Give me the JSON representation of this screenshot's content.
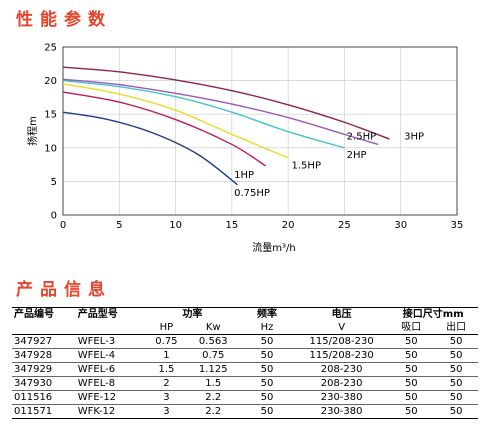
{
  "headings": {
    "performance": "性能参数",
    "product_info": "产品信息"
  },
  "chart_data": {
    "type": "line",
    "xlabel": "流量m³/h",
    "ylabel": "扬程m",
    "xlim": [
      0,
      35
    ],
    "ylim": [
      0,
      25
    ],
    "xticks": [
      0,
      5,
      10,
      15,
      20,
      25,
      30,
      35
    ],
    "yticks": [
      0,
      5,
      10,
      15,
      20,
      25
    ],
    "grid": true,
    "series": [
      {
        "name": "0.75HP",
        "color": "#1e3a8a",
        "points": [
          [
            0,
            15.3
          ],
          [
            4,
            14.2
          ],
          [
            8,
            12.2
          ],
          [
            12,
            9.0
          ],
          [
            15.5,
            4.5
          ]
        ]
      },
      {
        "name": "1HP",
        "color": "#c2185b",
        "points": [
          [
            0,
            18.3
          ],
          [
            5,
            16.8
          ],
          [
            10,
            14.2
          ],
          [
            15,
            10.5
          ],
          [
            18,
            7.3
          ]
        ]
      },
      {
        "name": "1.5HP",
        "color": "#eadb2b",
        "points": [
          [
            0,
            19.5
          ],
          [
            5,
            18.0
          ],
          [
            10,
            15.6
          ],
          [
            15,
            12.0
          ],
          [
            20,
            8.5
          ]
        ]
      },
      {
        "name": "2HP",
        "color": "#40c8c4",
        "points": [
          [
            0,
            20.0
          ],
          [
            5,
            19.1
          ],
          [
            10,
            17.6
          ],
          [
            15,
            15.3
          ],
          [
            20,
            12.4
          ],
          [
            25,
            10.0
          ]
        ]
      },
      {
        "name": "2.5HP",
        "color": "#9b59b6",
        "points": [
          [
            0,
            20.2
          ],
          [
            5,
            19.4
          ],
          [
            10,
            18.1
          ],
          [
            15,
            16.5
          ],
          [
            20,
            14.5
          ],
          [
            25,
            12.0
          ],
          [
            28,
            10.5
          ]
        ]
      },
      {
        "name": "3HP",
        "color": "#8b2252",
        "points": [
          [
            0,
            22.0
          ],
          [
            5,
            21.3
          ],
          [
            10,
            20.1
          ],
          [
            15,
            18.5
          ],
          [
            20,
            16.4
          ],
          [
            25,
            13.8
          ],
          [
            29,
            11.3
          ]
        ]
      }
    ],
    "labels": [
      {
        "text": "0.75HP",
        "x": 15.2,
        "y": 2.8
      },
      {
        "text": "1HP",
        "x": 15.2,
        "y": 5.5
      },
      {
        "text": "1.5HP",
        "x": 20.3,
        "y": 6.9
      },
      {
        "text": "2HP",
        "x": 25.2,
        "y": 8.5
      },
      {
        "text": "2.5HP",
        "x": 25.2,
        "y": 11.2
      },
      {
        "text": "3HP",
        "x": 30.3,
        "y": 11.2
      }
    ]
  },
  "table": {
    "header1": {
      "code": "产品编号",
      "model": "产品型号",
      "power": "功率",
      "freq": "频率",
      "voltage": "电压",
      "port": "接口尺寸mm"
    },
    "header2": {
      "hp": "HP",
      "kw": "Kw",
      "hz": "Hz",
      "v": "V",
      "inlet": "吸口",
      "outlet": "出口"
    },
    "rows": [
      {
        "code": "347927",
        "model": "WFEL-3",
        "hp": "0.75",
        "kw": "0.563",
        "hz": "50",
        "v": "115/208-230",
        "inlet": "50",
        "outlet": "50"
      },
      {
        "code": "347928",
        "model": "WFEL-4",
        "hp": "1",
        "kw": "0.75",
        "hz": "50",
        "v": "115/208-230",
        "inlet": "50",
        "outlet": "50"
      },
      {
        "code": "347929",
        "model": "WFEL-6",
        "hp": "1.5",
        "kw": "1.125",
        "hz": "50",
        "v": "208-230",
        "inlet": "50",
        "outlet": "50"
      },
      {
        "code": "347930",
        "model": "WFEL-8",
        "hp": "2",
        "kw": "1.5",
        "hz": "50",
        "v": "208-230",
        "inlet": "50",
        "outlet": "50"
      },
      {
        "code": "011516",
        "model": "WFE-12",
        "hp": "3",
        "kw": "2.2",
        "hz": "50",
        "v": "230-380",
        "inlet": "50",
        "outlet": "50"
      },
      {
        "code": "011571",
        "model": "WFK-12",
        "hp": "3",
        "kw": "2.2",
        "hz": "50",
        "v": "230-380",
        "inlet": "50",
        "outlet": "50"
      }
    ]
  }
}
